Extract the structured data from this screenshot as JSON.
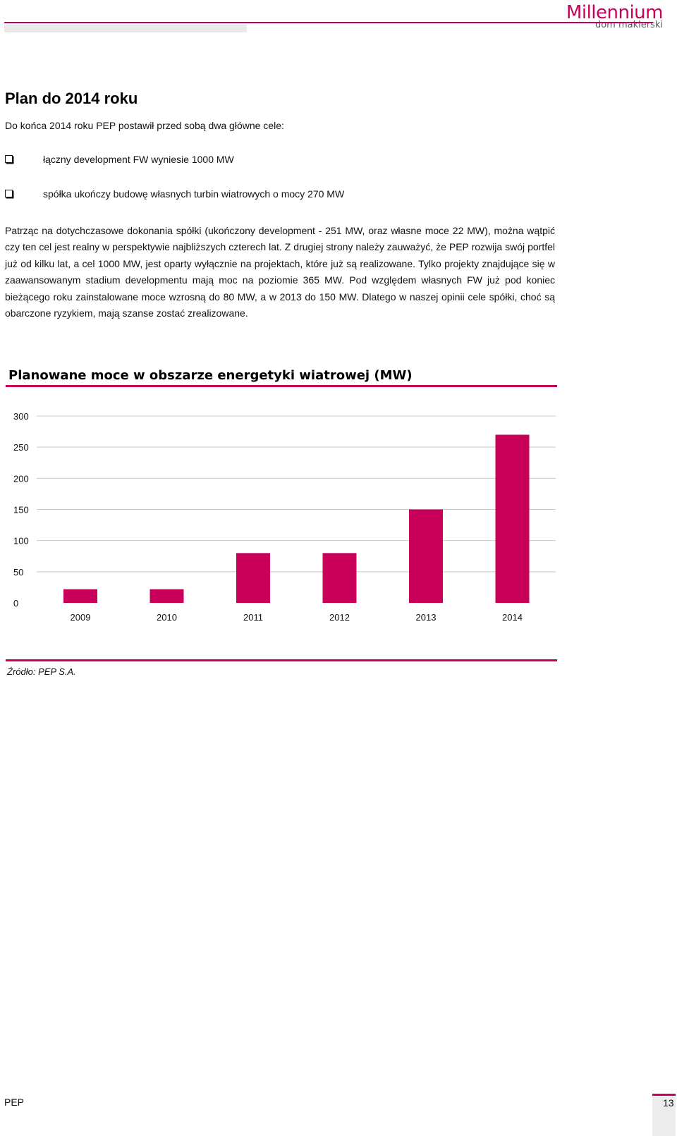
{
  "header": {
    "logo_name": "Millennium",
    "logo_sub": "dom maklerski"
  },
  "section": {
    "title": "Plan do 2014 roku",
    "intro": "Do końca 2014 roku PEP postawił przed sobą dwa główne cele:",
    "bullets": [
      "łączny development FW wyniesie 1000 MW",
      "spółka ukończy budowę własnych turbin wiatrowych o mocy 270 MW"
    ],
    "paragraph": "Patrząc na dotychczasowe dokonania spółki (ukończony development - 251 MW, oraz własne moce 22 MW), można wątpić czy ten cel jest realny w perspektywie najbliższych czterech lat. Z drugiej strony należy zauważyć, że PEP rozwija swój portfel już od kilku lat, a cel 1000 MW, jest oparty wyłącznie na projektach, które już są realizowane. Tylko projekty znajdujące się w zaawansowanym stadium developmentu mają moc na poziomie 365 MW. Pod względem własnych FW już pod koniec bieżącego roku zainstalowane moce wzrosną do 80 MW, a w 2013 do 150 MW. Dlatego w naszej opinii cele spółki, choć są obarczone ryzykiem, mają szanse zostać zrealizowane."
  },
  "chart_data": {
    "type": "bar",
    "title": "Planowane moce w obszarze energetyki wiatrowej (MW)",
    "categories": [
      "2009",
      "2010",
      "2011",
      "2012",
      "2013",
      "2014"
    ],
    "values": [
      22,
      22,
      80,
      80,
      150,
      270
    ],
    "ylim": [
      0,
      300
    ],
    "yticks": [
      "0",
      "50",
      "100",
      "150",
      "200",
      "250",
      "300"
    ],
    "grid": true,
    "bar_color": "#c8005a",
    "grid_color": "#c8c8c8"
  },
  "source": "Źródło: PEP S.A.",
  "footer": {
    "left": "PEP",
    "page": "13"
  },
  "colors": {
    "accent": "#c8005a"
  }
}
